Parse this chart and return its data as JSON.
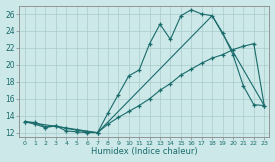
{
  "xlabel": "Humidex (Indice chaleur)",
  "background_color": "#cce8e8",
  "grid_color": "#aacccc",
  "line_color": "#1a6b6b",
  "xlim": [
    -0.5,
    23.5
  ],
  "ylim": [
    11.5,
    27
  ],
  "yticks": [
    12,
    14,
    16,
    18,
    20,
    22,
    24,
    26
  ],
  "xticks": [
    0,
    1,
    2,
    3,
    4,
    5,
    6,
    7,
    8,
    9,
    10,
    11,
    12,
    13,
    14,
    15,
    16,
    17,
    18,
    19,
    20,
    21,
    22,
    23
  ],
  "series1_x": [
    0,
    1,
    2,
    3,
    4,
    5,
    6,
    7,
    8,
    9,
    10,
    11,
    12,
    13,
    14,
    15,
    16,
    17,
    18,
    19,
    20,
    21,
    22,
    23
  ],
  "series1_y": [
    13.3,
    13.2,
    12.7,
    12.8,
    12.2,
    12.1,
    12.0,
    12.0,
    14.3,
    16.5,
    18.7,
    19.4,
    22.5,
    24.8,
    23.0,
    25.8,
    26.5,
    26.0,
    25.8,
    23.8,
    21.2,
    17.5,
    15.3,
    15.2
  ],
  "series2_x": [
    0,
    1,
    2,
    3,
    4,
    5,
    6,
    7,
    8,
    9,
    10,
    11,
    12,
    13,
    14,
    15,
    16,
    17,
    18,
    19,
    20,
    21,
    22,
    23
  ],
  "series2_y": [
    13.3,
    13.0,
    12.6,
    12.8,
    12.5,
    12.3,
    12.1,
    12.0,
    13.0,
    13.8,
    14.5,
    15.2,
    16.0,
    17.0,
    17.8,
    18.8,
    19.5,
    20.2,
    20.8,
    21.2,
    21.8,
    22.2,
    22.5,
    15.2
  ],
  "series3_x": [
    0,
    7,
    18,
    23
  ],
  "series3_y": [
    13.3,
    12.0,
    25.8,
    15.2
  ]
}
